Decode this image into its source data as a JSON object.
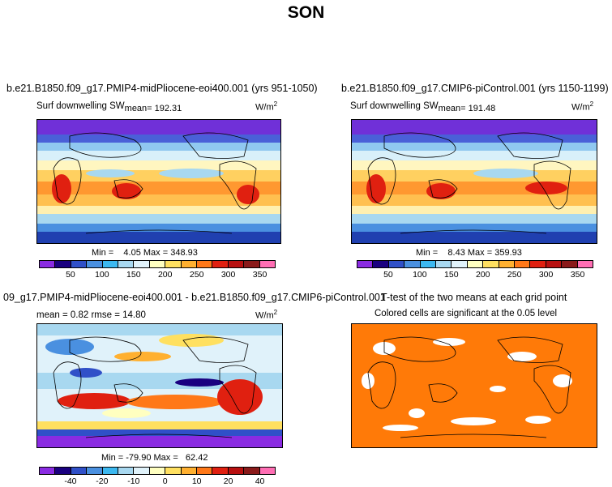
{
  "title": "SON",
  "units": "W/m",
  "unit_sup": "2",
  "panels": {
    "top_left": {
      "title": "b.e21.B1850.f09_g17.PMIP4-midPliocene-eoi400.001 (yrs 951-1050)",
      "var_label": "Surf downwelling SW",
      "mean_label": "mean= 192.31",
      "minmax": "Min =    4.05 Max = 348.93"
    },
    "top_right": {
      "title": "b.e21.B1850.f09_g17.CMIP6-piControl.001 (yrs 1150-1199)",
      "var_label": "Surf downwelling SW",
      "mean_label": "mean= 191.48",
      "minmax": "Min =    8.43 Max = 359.93"
    },
    "bottom_left": {
      "title": "09_g17.PMIP4-midPliocene-eoi400.001 - b.e21.B1850.f09_g17.CMIP6-piControl.001",
      "stats": "mean =    0.82     rmse =   14.80",
      "minmax": "Min = -79.90 Max =   62.42"
    },
    "bottom_right": {
      "title": "T-test of the two means at each grid point",
      "subtitle": "Colored cells are significant at the 0.05 level"
    }
  },
  "colorbar_abs": {
    "colors": [
      "#8a2be2",
      "#1a0080",
      "#3050c8",
      "#4a90e0",
      "#3cb8f0",
      "#a8d8f0",
      "#e0f2fa",
      "#ffffc0",
      "#ffe060",
      "#ffb030",
      "#ff7818",
      "#e02010",
      "#b81010",
      "#8a1a1a",
      "#ff6eb4"
    ],
    "ticks": [
      "50",
      "100",
      "150",
      "200",
      "250",
      "300",
      "350"
    ]
  },
  "colorbar_diff": {
    "colors": [
      "#8a2be2",
      "#1a0080",
      "#3050c8",
      "#4a90e0",
      "#3cb8f0",
      "#a8d8f0",
      "#e0f2fa",
      "#ffffc0",
      "#ffe060",
      "#ffb030",
      "#ff7818",
      "#e02010",
      "#b81010",
      "#8a1a1a",
      "#ff6eb4"
    ],
    "ticks": [
      "-40",
      "-20",
      "-10",
      "0",
      "10",
      "20",
      "40"
    ]
  }
}
